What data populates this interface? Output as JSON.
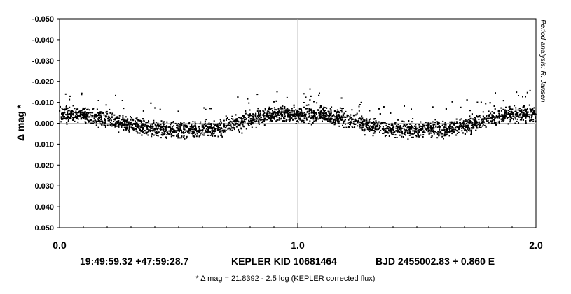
{
  "chart_data": {
    "type": "scatter",
    "title": "",
    "xlabel": "",
    "ylabel": "Δ mag *",
    "xlim": [
      0.0,
      2.0
    ],
    "ylim": [
      -0.05,
      0.05
    ],
    "y_inverted": true,
    "grid": "center cross at x=1.0, y=0.000",
    "x_major_ticks": [
      "0.0",
      "1.0",
      "2.0"
    ],
    "x_minor_step": 0.1,
    "y_ticks": [
      "-0.050",
      "-0.040",
      "-0.030",
      "-0.020",
      "-0.010",
      "0.000",
      "0.010",
      "0.020",
      "0.030",
      "0.040",
      "0.050"
    ],
    "period_days": 0.86,
    "epoch_bjd": 2455002.83,
    "light_curve_phase": [
      0.0,
      0.05,
      0.1,
      0.15,
      0.2,
      0.25,
      0.3,
      0.35,
      0.4,
      0.45,
      0.5,
      0.55,
      0.6,
      0.65,
      0.7,
      0.75,
      0.8,
      0.85,
      0.9,
      0.95,
      1.0
    ],
    "light_curve_center": [
      -0.004,
      -0.0045,
      -0.004,
      -0.003,
      -0.002,
      -0.0005,
      0.001,
      0.002,
      0.0028,
      0.0032,
      0.0033,
      0.0032,
      0.003,
      0.0025,
      0.0015,
      0.0,
      -0.0015,
      -0.003,
      -0.004,
      -0.0045,
      -0.004
    ],
    "scatter_spread": 0.0065,
    "point_color": "#000000"
  },
  "side_note": "Period analysis: R. Jansen",
  "info_line": {
    "coords": "19:49:59.32 +47:59:28.7",
    "object": "KEPLER KID 10681464",
    "ephemeris": "BJD 2455002.83 + 0.860 E"
  },
  "footnote": "* Δ mag = 21.8392 - 2.5 log (KEPLER corrected flux)"
}
